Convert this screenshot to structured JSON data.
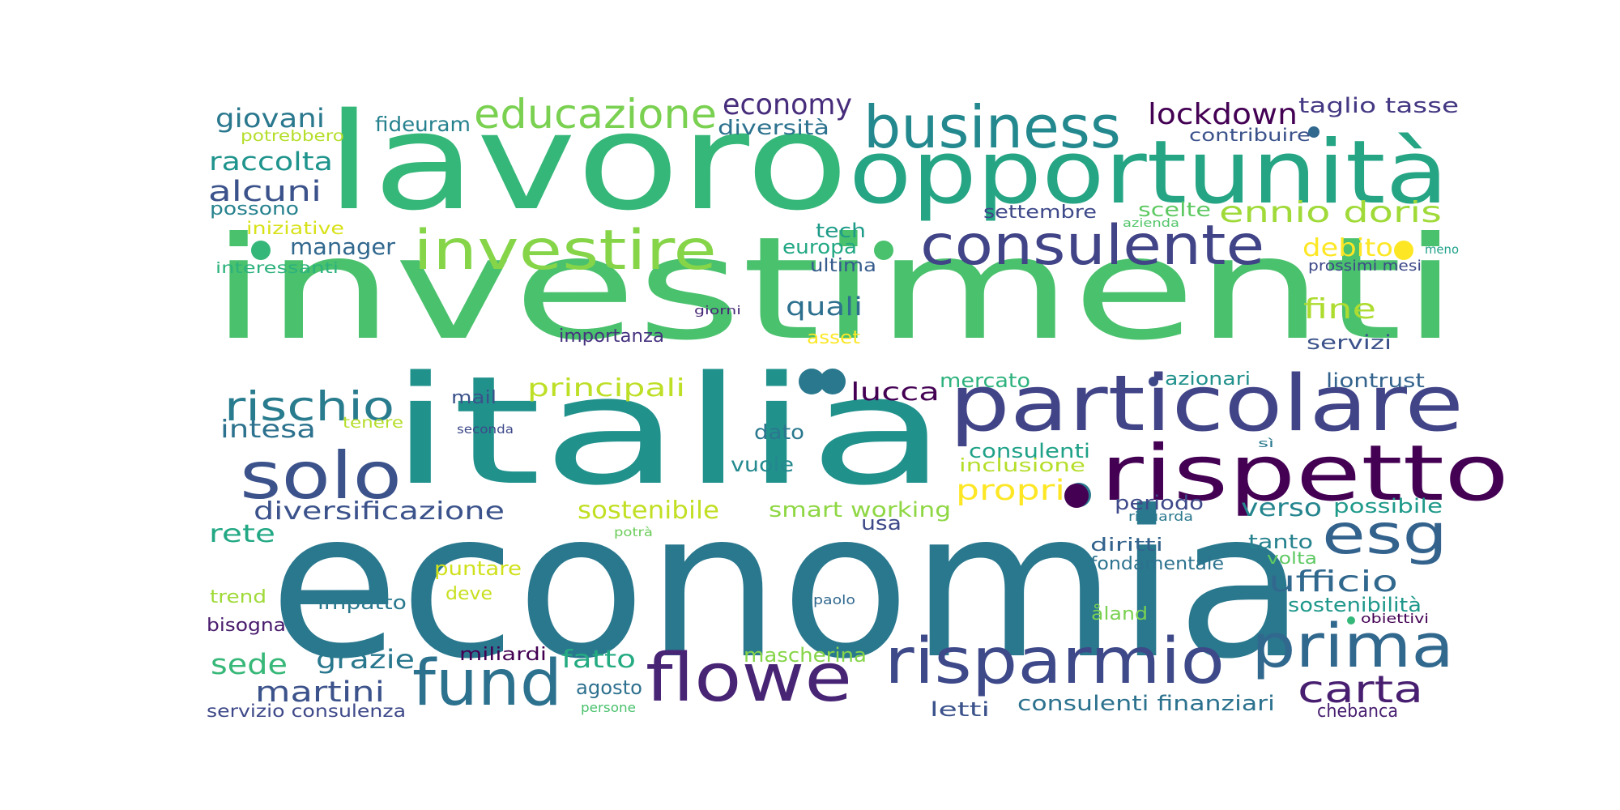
{
  "words": [
    {
      "text": "investimenti",
      "color": "#4ac16d"
    },
    {
      "text": "economia",
      "color": "#2a788e"
    },
    {
      "text": "italia",
      "color": "#21918c"
    },
    {
      "text": "lavoro",
      "color": "#35b779"
    },
    {
      "text": "opportunità",
      "color": "#25a584"
    },
    {
      "text": "particolare",
      "color": "#414487"
    },
    {
      "text": "rispetto",
      "color": "#440154"
    },
    {
      "text": "business",
      "color": "#23898e"
    },
    {
      "text": "consulente",
      "color": "#414487"
    },
    {
      "text": "investire",
      "color": "#86d549"
    },
    {
      "text": "educazione",
      "color": "#7ad151"
    },
    {
      "text": "solo",
      "color": "#3b528b"
    },
    {
      "text": "flowe",
      "color": "#482475"
    },
    {
      "text": "fund",
      "color": "#2c728e"
    },
    {
      "text": "risparmio",
      "color": "#3e4989"
    },
    {
      "text": "prima",
      "color": "#31688e"
    },
    {
      "text": "esg",
      "color": "#33638d"
    },
    {
      "text": "carta",
      "color": "#481f70"
    },
    {
      "text": "rischio",
      "color": "#287c8e"
    },
    {
      "text": "economy",
      "color": "#472d7b"
    },
    {
      "text": "lockdown",
      "color": "#440154"
    },
    {
      "text": "taglio tasse",
      "color": "#443983"
    },
    {
      "text": "giovani",
      "color": "#2a788e"
    },
    {
      "text": "fideuram",
      "color": "#26818e"
    },
    {
      "text": "diversità",
      "color": "#2c728e"
    },
    {
      "text": "contribuire",
      "color": "#3b528b"
    },
    {
      "text": "potrebbero",
      "color": "#b5de2b"
    },
    {
      "text": "raccolta",
      "color": "#1f948c"
    },
    {
      "text": "alcuni",
      "color": "#3b528b"
    },
    {
      "text": "possono",
      "color": "#26828e"
    },
    {
      "text": "iniziative",
      "color": "#d8e219"
    },
    {
      "text": "interessanti",
      "color": "#2db27d"
    },
    {
      "text": "manager",
      "color": "#31688e"
    },
    {
      "text": "ennio doris",
      "color": "#a0da39"
    },
    {
      "text": "scelte",
      "color": "#5ec962"
    },
    {
      "text": "settembre",
      "color": "#3e4989"
    },
    {
      "text": "azienda",
      "color": "#52c569"
    },
    {
      "text": "tech",
      "color": "#1e9c89"
    },
    {
      "text": "europa",
      "color": "#22a884"
    },
    {
      "text": "ultima",
      "color": "#365c8d"
    },
    {
      "text": "debito",
      "color": "#fde725"
    },
    {
      "text": "meno",
      "color": "#1fa088"
    },
    {
      "text": "prossimi mesi",
      "color": "#3e4989"
    },
    {
      "text": "fine",
      "color": "#addc30"
    },
    {
      "text": "quali",
      "color": "#2d708e"
    },
    {
      "text": "giorni",
      "color": "#482878"
    },
    {
      "text": "importanza",
      "color": "#46337f"
    },
    {
      "text": "asset",
      "color": "#fde725"
    },
    {
      "text": "servizi",
      "color": "#3b528b"
    },
    {
      "text": "principali",
      "color": "#bddf26"
    },
    {
      "text": "lucca",
      "color": "#440154"
    },
    {
      "text": "mercato",
      "color": "#2db27d"
    },
    {
      "text": "azionari",
      "color": "#21918c"
    },
    {
      "text": "liontrust",
      "color": "#33638d"
    },
    {
      "text": "mail",
      "color": "#3b528b"
    },
    {
      "text": "intesa",
      "color": "#2c728e"
    },
    {
      "text": "tenere",
      "color": "#b5de2b"
    },
    {
      "text": "seconda",
      "color": "#3e4989"
    },
    {
      "text": "dato",
      "color": "#2a788e"
    },
    {
      "text": "consulenti",
      "color": "#1fa188"
    },
    {
      "text": "inclusione",
      "color": "#b5de2b"
    },
    {
      "text": "sì",
      "color": "#2a788e"
    },
    {
      "text": "vuole",
      "color": "#23898e"
    },
    {
      "text": "propri",
      "color": "#fde725"
    },
    {
      "text": "diversificazione",
      "color": "#3b528b"
    },
    {
      "text": "sostenibile",
      "color": "#c2df23"
    },
    {
      "text": "smart working",
      "color": "#8fd744"
    },
    {
      "text": "periodo",
      "color": "#3e4989"
    },
    {
      "text": "verso",
      "color": "#25858e"
    },
    {
      "text": "possibile",
      "color": "#1f9a8a"
    },
    {
      "text": "riguarda",
      "color": "#2a788e"
    },
    {
      "text": "rete",
      "color": "#22a884"
    },
    {
      "text": "usa",
      "color": "#3e4989"
    },
    {
      "text": "potrà",
      "color": "#6ccd5a"
    },
    {
      "text": "diritti",
      "color": "#33638d"
    },
    {
      "text": "tanto",
      "color": "#26828e"
    },
    {
      "text": "volta",
      "color": "#5ec962"
    },
    {
      "text": "ufficio",
      "color": "#31688e"
    },
    {
      "text": "fondamentale",
      "color": "#2c728e"
    },
    {
      "text": "puntare",
      "color": "#d0e11c"
    },
    {
      "text": "trend",
      "color": "#a0da39"
    },
    {
      "text": "impatto",
      "color": "#2a788e"
    },
    {
      "text": "deve",
      "color": "#c8e020"
    },
    {
      "text": "paolo",
      "color": "#31688e"
    },
    {
      "text": "sostenibilità",
      "color": "#1f988b"
    },
    {
      "text": "åland",
      "color": "#7ad151"
    },
    {
      "text": "obiettivi",
      "color": "#440154"
    },
    {
      "text": "bisogna",
      "color": "#481a6c"
    },
    {
      "text": "sede",
      "color": "#37b878"
    },
    {
      "text": "grazie",
      "color": "#2a788e"
    },
    {
      "text": "miliardi",
      "color": "#440154"
    },
    {
      "text": "fatto",
      "color": "#25ab82"
    },
    {
      "text": "mascherina",
      "color": "#86d549"
    },
    {
      "text": "martini",
      "color": "#3b528b"
    },
    {
      "text": "agosto",
      "color": "#2d708e"
    },
    {
      "text": "servizio consulenza",
      "color": "#3e4989"
    },
    {
      "text": "persone",
      "color": "#4ac16d"
    },
    {
      "text": "letti",
      "color": "#3b528b"
    },
    {
      "text": "consulenti finanziari",
      "color": "#2c728e"
    },
    {
      "text": "chebanca",
      "color": "#481f70"
    }
  ],
  "bullets": [
    {
      "name": "bullet-dot",
      "color": "#35b779"
    },
    {
      "name": "bullet-dot",
      "color": "#4ac16d"
    },
    {
      "name": "bullet-dot",
      "color": "#2a788e"
    },
    {
      "name": "bullet-dot",
      "color": "#2a788e"
    },
    {
      "name": "bullet-dot",
      "color": "#3e4989"
    },
    {
      "name": "bullet-dot",
      "color": "#31688e"
    },
    {
      "name": "bullet-dot",
      "color": "#fde725"
    },
    {
      "name": "bullet-dot",
      "color": "#2a788e"
    },
    {
      "name": "bullet-dot",
      "color": "#440154"
    },
    {
      "name": "bullet-dot",
      "color": "#35b779"
    }
  ]
}
